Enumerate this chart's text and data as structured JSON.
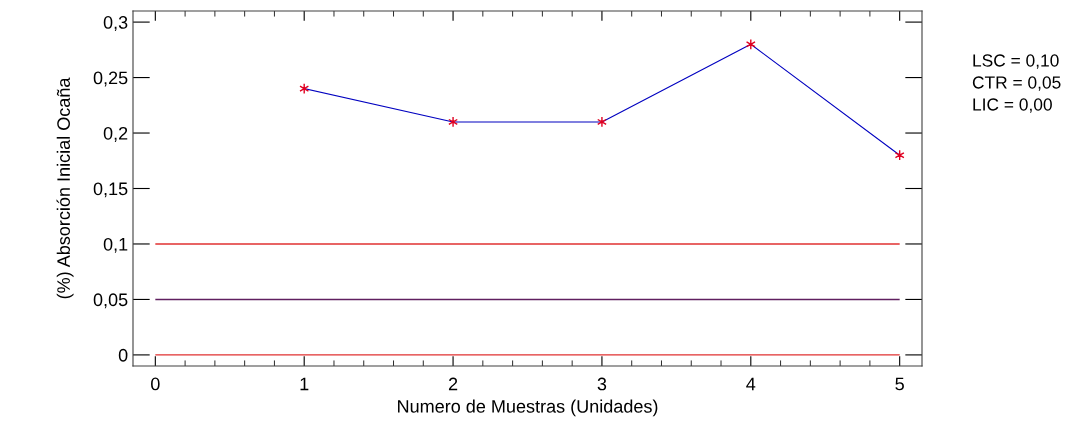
{
  "chart_data": {
    "type": "line",
    "xlabel": "Numero de Muestras (Unidades)",
    "ylabel": "(%) Absorción Inicial Ocaña",
    "x": [
      1,
      2,
      3,
      4,
      5
    ],
    "series": [
      {
        "color": "#0000c0",
        "colors": [
          "#e00020",
          "#e00020",
          "#e00020",
          "#e00020",
          "#e00020"
        ],
        "values": [
          0.24,
          0.21,
          0.21,
          0.28,
          0.18
        ]
      }
    ],
    "xlim": [
      -0.15,
      5.15
    ],
    "xticks": [
      0,
      1,
      2,
      3,
      4,
      5
    ],
    "ylim": [
      -0.01,
      0.31
    ],
    "yticks": [
      {
        "value": 0,
        "label": "0"
      },
      {
        "value": 0.05,
        "label": "0,05"
      },
      {
        "value": 0.1,
        "label": "0,1"
      },
      {
        "value": 0.15,
        "label": "0,15"
      },
      {
        "value": 0.2,
        "label": "0,2"
      },
      {
        "value": 0.25,
        "label": "0,25"
      },
      {
        "value": 0.3,
        "label": "0,3"
      }
    ],
    "ref_lines": [
      {
        "axis": "y",
        "value": 0.1,
        "color": "#e03030"
      },
      {
        "axis": "y",
        "value": 0.05,
        "color": "#602060"
      },
      {
        "axis": "y",
        "value": 0,
        "color": "#e03030"
      }
    ],
    "annotations": [
      "LSC = 0,10",
      "CTR = 0,05",
      "LIC = 0,00"
    ],
    "marker": "cross",
    "line_style": "solid",
    "grid": false,
    "legend": false
  }
}
